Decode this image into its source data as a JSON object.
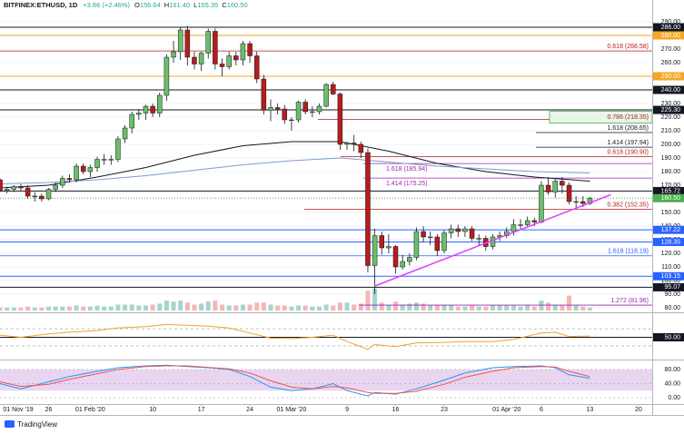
{
  "chart_data": [
    {
      "type": "candlestick",
      "title": "BITFINEX:ETHUSD, 1D",
      "change": "+3.86 (+2.46%)",
      "ohlc": [
        {
          "label": "O",
          "value": "156.64"
        },
        {
          "label": "H",
          "value": "161.40"
        },
        {
          "label": "L",
          "value": "155.35"
        },
        {
          "label": "C",
          "value": "160.50"
        }
      ],
      "x": [
        "2020-01-18",
        "2020-01-19",
        "2020-01-20",
        "2020-01-21",
        "2020-01-22",
        "2020-01-23",
        "2020-01-24",
        "2020-01-25",
        "2020-01-26",
        "2020-01-27",
        "2020-01-28",
        "2020-01-29",
        "2020-01-30",
        "2020-01-31",
        "2020-02-01",
        "2020-02-02",
        "2020-02-03",
        "2020-02-04",
        "2020-02-05",
        "2020-02-06",
        "2020-02-07",
        "2020-02-08",
        "2020-02-09",
        "2020-02-10",
        "2020-02-11",
        "2020-02-12",
        "2020-02-13",
        "2020-02-14",
        "2020-02-15",
        "2020-02-16",
        "2020-02-17",
        "2020-02-18",
        "2020-02-19",
        "2020-02-20",
        "2020-02-21",
        "2020-02-22",
        "2020-02-23",
        "2020-02-24",
        "2020-02-25",
        "2020-02-26",
        "2020-02-27",
        "2020-02-28",
        "2020-02-29",
        "2020-03-01",
        "2020-03-02",
        "2020-03-03",
        "2020-03-04",
        "2020-03-05",
        "2020-03-06",
        "2020-03-07",
        "2020-03-08",
        "2020-03-09",
        "2020-03-10",
        "2020-03-11",
        "2020-03-12",
        "2020-03-13",
        "2020-03-14",
        "2020-03-15",
        "2020-03-16",
        "2020-03-17",
        "2020-03-18",
        "2020-03-19",
        "2020-03-20",
        "2020-03-21",
        "2020-03-22",
        "2020-03-23",
        "2020-03-24",
        "2020-03-25",
        "2020-03-26",
        "2020-03-27",
        "2020-03-28",
        "2020-03-29",
        "2020-03-30",
        "2020-03-31",
        "2020-04-01",
        "2020-04-02",
        "2020-04-03",
        "2020-04-04",
        "2020-04-05",
        "2020-04-06",
        "2020-04-07",
        "2020-04-08",
        "2020-04-09",
        "2020-04-10",
        "2020-04-11",
        "2020-04-12",
        "2020-04-13"
      ],
      "open": [
        172,
        174,
        166,
        167,
        169,
        168,
        162,
        162,
        160,
        167,
        170,
        175,
        174,
        184,
        180,
        183,
        189,
        189,
        189,
        204,
        212,
        222,
        223,
        228,
        223,
        236,
        264,
        268,
        284,
        264,
        259,
        267,
        283,
        259,
        257,
        265,
        262,
        274,
        265,
        248,
        225,
        227,
        226,
        218,
        218,
        231,
        224,
        224,
        228,
        244,
        237,
        200,
        201,
        200,
        194,
        111,
        133,
        124,
        125,
        110,
        114,
        117,
        136,
        132,
        132,
        122,
        135,
        138,
        136,
        138,
        131,
        131,
        125,
        132,
        133,
        136,
        141,
        141,
        144,
        143,
        170,
        165,
        173,
        170,
        158,
        158,
        156.64
      ],
      "high": [
        176,
        175,
        169,
        170,
        171,
        170,
        165,
        164,
        168,
        172,
        177,
        178,
        186,
        186,
        185,
        191,
        193,
        192,
        206,
        214,
        224,
        226,
        229,
        230,
        238,
        266,
        276,
        286,
        287,
        268,
        268,
        285,
        285,
        263,
        268,
        268,
        276,
        276,
        268,
        251,
        233,
        230,
        229,
        220,
        232,
        233,
        228,
        230,
        245,
        246,
        238,
        202,
        207,
        202,
        197,
        138,
        136,
        134,
        126,
        119,
        120,
        139,
        140,
        136,
        134,
        137,
        141,
        141,
        140,
        140,
        134,
        133,
        134,
        136,
        139,
        145,
        145,
        147,
        146,
        173,
        176,
        175,
        176,
        172,
        162,
        162,
        161.4
      ],
      "low": [
        170,
        165,
        164,
        165,
        166,
        160,
        158,
        158,
        159,
        165,
        168,
        172,
        172,
        178,
        176,
        180,
        185,
        185,
        187,
        201,
        208,
        218,
        218,
        220,
        220,
        232,
        260,
        262,
        258,
        255,
        254,
        263,
        255,
        250,
        255,
        258,
        258,
        260,
        245,
        222,
        217,
        222,
        215,
        210,
        216,
        222,
        220,
        222,
        227,
        236,
        196,
        196,
        195,
        190,
        106,
        90,
        119,
        120,
        105,
        108,
        111,
        115,
        128,
        126,
        118,
        120,
        131,
        132,
        132,
        129,
        126,
        122,
        123,
        129,
        131,
        133,
        138,
        139,
        140,
        142,
        163,
        161,
        164,
        156,
        153,
        154,
        155.35
      ],
      "close": [
        174,
        166,
        167,
        169,
        168,
        162,
        162,
        160,
        167,
        170,
        175,
        174,
        184,
        180,
        183,
        189,
        189,
        189,
        204,
        212,
        222,
        223,
        228,
        223,
        236,
        264,
        268,
        284,
        264,
        259,
        267,
        283,
        259,
        257,
        265,
        262,
        274,
        265,
        248,
        225,
        227,
        226,
        218,
        218,
        231,
        224,
        224,
        228,
        244,
        237,
        200,
        201,
        200,
        194,
        111,
        133,
        124,
        125,
        110,
        114,
        117,
        136,
        132,
        132,
        122,
        135,
        138,
        136,
        138,
        131,
        131,
        125,
        132,
        133,
        136,
        141,
        141,
        144,
        143,
        170,
        165,
        173,
        170,
        158,
        158,
        156.64,
        160.5
      ],
      "volume": [
        4,
        3,
        3,
        3,
        3,
        4,
        3,
        3,
        4,
        4,
        4,
        4,
        5,
        4,
        4,
        5,
        4,
        4,
        6,
        6,
        6,
        5,
        5,
        6,
        7,
        10,
        9,
        10,
        8,
        6,
        7,
        9,
        10,
        6,
        5,
        5,
        6,
        6,
        8,
        8,
        6,
        5,
        5,
        4,
        5,
        5,
        4,
        4,
        6,
        5,
        8,
        8,
        6,
        7,
        20,
        22,
        8,
        5,
        9,
        6,
        7,
        8,
        7,
        5,
        6,
        6,
        5,
        4,
        4,
        5,
        4,
        4,
        5,
        5,
        5,
        5,
        4,
        5,
        4,
        10,
        8,
        6,
        5,
        15,
        5,
        4,
        3
      ],
      "up_color": "#6abf69",
      "down_color": "#b71c1c",
      "volume_up_color": "#a5d6c9",
      "volume_down_color": "#f4b6b6",
      "ylim": [
        78,
        306
      ],
      "yticks": [
        {
          "value": 290,
          "label": "290.00"
        },
        {
          "value": 270,
          "label": "270.00"
        },
        {
          "value": 260,
          "label": "260.00"
        },
        {
          "value": 230,
          "label": "230.00"
        },
        {
          "value": 220,
          "label": "220.00"
        },
        {
          "value": 210,
          "label": "210.00"
        },
        {
          "value": 200,
          "label": "200.00"
        },
        {
          "value": 190,
          "label": "190.00"
        },
        {
          "value": 180,
          "label": "180.00"
        },
        {
          "value": 170,
          "label": "170.00"
        },
        {
          "value": 150,
          "label": "150.00"
        },
        {
          "value": 140,
          "label": "140.00"
        },
        {
          "value": 130,
          "label": "130.00"
        },
        {
          "value": 120,
          "label": "120.00"
        },
        {
          "value": 110,
          "label": "110.00"
        },
        {
          "value": 100,
          "label": "100.00"
        },
        {
          "value": 90,
          "label": "90.00"
        },
        {
          "value": 80,
          "label": "80.00"
        }
      ],
      "grid": true,
      "xticks": [
        {
          "value": "2019-11-01",
          "label": "01 Nov '19"
        },
        {
          "value": "2020-01-26",
          "label": "26"
        },
        {
          "value": "2020-02-01",
          "label": "01 Feb '20"
        },
        {
          "value": "2020-02-10",
          "label": "10"
        },
        {
          "value": "2020-02-17",
          "label": "17"
        },
        {
          "value": "2020-02-24",
          "label": "24"
        },
        {
          "value": "2020-03-01",
          "label": "01 Mar '20"
        },
        {
          "value": "2020-03-09",
          "label": "9"
        },
        {
          "value": "2020-03-16",
          "label": "16"
        },
        {
          "value": "2020-03-23",
          "label": "23"
        },
        {
          "value": "2020-04-01",
          "label": "01 Apr '20"
        },
        {
          "value": "2020-04-06",
          "label": "6"
        },
        {
          "value": "2020-04-13",
          "label": "13"
        },
        {
          "value": "2020-04-20",
          "label": "20"
        }
      ],
      "levels": [
        {
          "value": 286,
          "label": "286.00",
          "style": "axis",
          "color": "#131722"
        },
        {
          "value": 280,
          "label": "280.00",
          "style": "axis",
          "color": "#f5a623"
        },
        {
          "value": 268.58,
          "label": "0.618 (268.58)",
          "style": "fib",
          "color": "#b71c1c"
        },
        {
          "value": 250,
          "label": "250.00",
          "style": "axis",
          "color": "#f5a623"
        },
        {
          "value": 240,
          "label": "240.00",
          "style": "axis",
          "color": "#131722"
        },
        {
          "value": 225.3,
          "label": "225.30",
          "style": "axis",
          "color": "#131722"
        },
        {
          "value": 218.35,
          "label": "0.786 (218.35)",
          "style": "fib-box",
          "color": "#b71c1c"
        },
        {
          "value": 208.65,
          "label": "1.618 (208.65)",
          "style": "fib",
          "color": "#131722"
        },
        {
          "value": 197.94,
          "label": "1.414 (197.94)",
          "style": "fib",
          "color": "#131722"
        },
        {
          "value": 190.9,
          "label": "0.618 (190.90)",
          "style": "fib",
          "color": "#b71c1c"
        },
        {
          "value": 185.94,
          "label": "1.618 (185.94)",
          "style": "fib",
          "color": "#9c27b0"
        },
        {
          "value": 175.25,
          "label": "1.414 (175.25)",
          "style": "fib",
          "color": "#9c27b0"
        },
        {
          "value": 165.72,
          "label": "165.72",
          "style": "axis",
          "color": "#131722"
        },
        {
          "value": 160.5,
          "label": "160.50",
          "style": "price",
          "color": "#4caf50"
        },
        {
          "value": 152.35,
          "label": "0.382 (152.35)",
          "style": "fib",
          "color": "#b71c1c"
        },
        {
          "value": 137.22,
          "label": "137.22",
          "style": "axis",
          "color": "#2962ff"
        },
        {
          "value": 128.35,
          "label": "128.35",
          "style": "axis",
          "color": "#2962ff"
        },
        {
          "value": 118.19,
          "label": "1.618 (118.19)",
          "style": "fib",
          "color": "#2962ff"
        },
        {
          "value": 103.15,
          "label": "103.15",
          "style": "axis",
          "color": "#2962ff"
        },
        {
          "value": 95.07,
          "label": "95.07",
          "style": "axis",
          "color": "#131722"
        },
        {
          "value": 81.96,
          "label": "1.272 (81.96)",
          "style": "fib",
          "color": "#9c27b0"
        }
      ],
      "trendline": {
        "color": "#e040fb",
        "x": [
          "2020-03-13",
          "2020-04-16"
        ],
        "values": [
          96,
          163
        ]
      },
      "series": [
        {
          "color": "#131722",
          "x": [
            "2020-01-19",
            "2020-01-26",
            "2020-02-02",
            "2020-02-09",
            "2020-02-16",
            "2020-02-23",
            "2020-03-01",
            "2020-03-08",
            "2020-03-15",
            "2020-03-22",
            "2020-03-29",
            "2020-04-05",
            "2020-04-13"
          ],
          "values": [
            168,
            170,
            176,
            183,
            192,
            199,
            202,
            202,
            195,
            186,
            180,
            176,
            173
          ]
        },
        {
          "color": "#7e9cc9",
          "x": [
            "2020-01-19",
            "2020-01-26",
            "2020-02-02",
            "2020-02-09",
            "2020-02-16",
            "2020-02-23",
            "2020-03-01",
            "2020-03-08",
            "2020-03-15",
            "2020-03-22",
            "2020-03-29",
            "2020-04-05",
            "2020-04-13"
          ],
          "values": [
            171,
            172,
            174,
            177,
            181,
            185,
            188,
            190,
            187,
            184,
            182,
            180,
            179
          ]
        }
      ]
    },
    {
      "type": "line",
      "x": [
        "2020-01-19",
        "2020-01-22",
        "2020-01-26",
        "2020-01-29",
        "2020-02-02",
        "2020-02-05",
        "2020-02-09",
        "2020-02-12",
        "2020-02-15",
        "2020-02-18",
        "2020-02-21",
        "2020-02-24",
        "2020-02-27",
        "2020-03-01",
        "2020-03-04",
        "2020-03-07",
        "2020-03-09",
        "2020-03-12",
        "2020-03-13",
        "2020-03-16",
        "2020-03-19",
        "2020-03-23",
        "2020-03-26",
        "2020-03-30",
        "2020-04-02",
        "2020-04-06",
        "2020-04-08",
        "2020-04-10",
        "2020-04-13"
      ],
      "series": [
        {
          "color": "#f0a030",
          "values": [
            55,
            50,
            58,
            62,
            66,
            72,
            75,
            80,
            78,
            76,
            72,
            60,
            48,
            47,
            50,
            55,
            40,
            22,
            33,
            28,
            37,
            38,
            40,
            40,
            45,
            60,
            62,
            52,
            53
          ]
        }
      ],
      "ylim": [
        0,
        100
      ],
      "yticks": [
        {
          "value": 50,
          "label": "50.00"
        }
      ],
      "bands": [
        30,
        70
      ]
    },
    {
      "type": "line",
      "x": [
        "2020-01-19",
        "2020-01-22",
        "2020-01-26",
        "2020-01-29",
        "2020-02-02",
        "2020-02-05",
        "2020-02-09",
        "2020-02-12",
        "2020-02-15",
        "2020-02-18",
        "2020-02-21",
        "2020-02-24",
        "2020-02-27",
        "2020-03-01",
        "2020-03-04",
        "2020-03-07",
        "2020-03-09",
        "2020-03-12",
        "2020-03-13",
        "2020-03-16",
        "2020-03-19",
        "2020-03-23",
        "2020-03-26",
        "2020-03-30",
        "2020-04-02",
        "2020-04-06",
        "2020-04-08",
        "2020-04-10",
        "2020-04-13"
      ],
      "series": [
        {
          "color": "#2196f3",
          "values": [
            40,
            25,
            45,
            60,
            75,
            85,
            90,
            92,
            88,
            85,
            80,
            60,
            30,
            20,
            25,
            40,
            20,
            5,
            15,
            10,
            25,
            50,
            70,
            85,
            88,
            90,
            85,
            65,
            55
          ]
        },
        {
          "color": "#ef5350",
          "values": [
            45,
            32,
            38,
            52,
            68,
            80,
            88,
            90,
            90,
            86,
            82,
            70,
            48,
            30,
            25,
            32,
            28,
            15,
            12,
            12,
            18,
            38,
            58,
            75,
            85,
            88,
            87,
            75,
            60
          ]
        }
      ],
      "ylim": [
        -18,
        103
      ],
      "yticks": [
        {
          "value": 80,
          "label": "80.00"
        },
        {
          "value": 40,
          "label": "40.00"
        },
        {
          "value": 0,
          "label": "0.00"
        }
      ],
      "band": [
        20,
        80
      ],
      "band_color": "#e9d5f0"
    }
  ],
  "footer": "TradingView"
}
